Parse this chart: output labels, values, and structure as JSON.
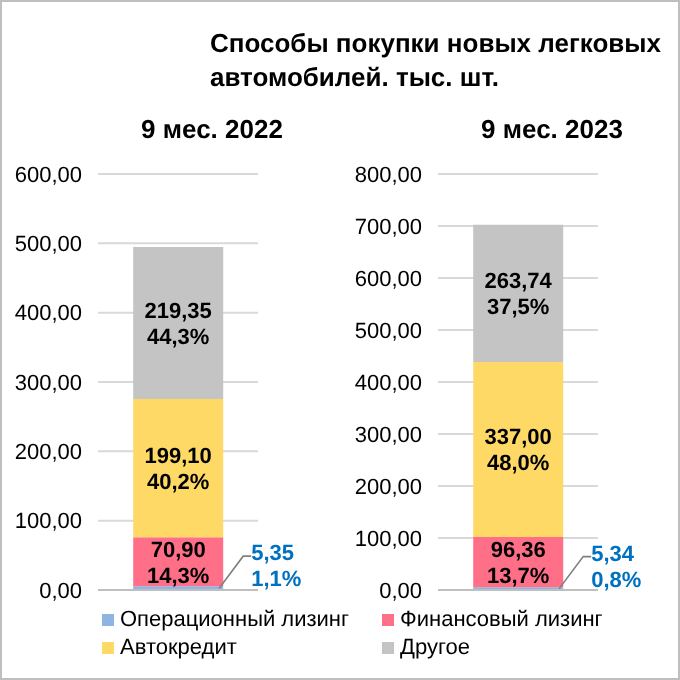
{
  "chart_data": [
    {
      "type": "bar",
      "title": "Способы покупки новых легковых  автомобилей. тыс. шт.",
      "subtitle": "9 мес. 2022",
      "categories": [
        null
      ],
      "stacked": true,
      "grid": "y",
      "legend": "bottom",
      "data_labels": false,
      "ylim": [
        0,
        600
      ],
      "yticks": [
        {
          "value": 0,
          "label": "0,00"
        },
        {
          "value": 100,
          "label": "100,00"
        },
        {
          "value": 200,
          "label": "200,00"
        },
        {
          "value": 300,
          "label": "300,00"
        },
        {
          "value": 400,
          "label": "400,00"
        },
        {
          "value": 500,
          "label": "500,00"
        },
        {
          "value": 600,
          "label": "600,00"
        }
      ],
      "series": [
        {
          "name": "Операционный лизинг",
          "color": "#8eb4e3",
          "values": [
            5.35
          ],
          "value_labels": [
            "5,35\n1,1%"
          ]
        },
        {
          "name": "Финансовый лизинг",
          "color": "#ff7088",
          "values": [
            70.9
          ],
          "value_labels": [
            "70,90\n14,3%"
          ]
        },
        {
          "name": "Автокредит",
          "color": "#ffd966",
          "values": [
            199.1
          ],
          "value_labels": [
            "199,10\n40,2%"
          ]
        },
        {
          "name": "Другое",
          "color": "#c4c4c4",
          "values": [
            219.35
          ],
          "value_labels": [
            "219,35\n44,3%"
          ]
        }
      ]
    },
    {
      "type": "bar",
      "subtitle": "9 мес. 2023",
      "categories": [
        null
      ],
      "stacked": true,
      "grid": "y",
      "ylim": [
        0,
        800
      ],
      "yticks": [
        {
          "value": 0,
          "label": "0,00"
        },
        {
          "value": 100,
          "label": "100,00"
        },
        {
          "value": 200,
          "label": "200,00"
        },
        {
          "value": 300,
          "label": "300,00"
        },
        {
          "value": 400,
          "label": "400,00"
        },
        {
          "value": 500,
          "label": "500,00"
        },
        {
          "value": 600,
          "label": "600,00"
        },
        {
          "value": 700,
          "label": "700,00"
        },
        {
          "value": 800,
          "label": "800,00"
        }
      ],
      "series": [
        {
          "name": "Операционный лизинг",
          "color": "#8eb4e3",
          "values": [
            5.34
          ],
          "value_labels": [
            "5,34\n0,8%"
          ]
        },
        {
          "name": "Финансовый лизинг",
          "color": "#ff7088",
          "values": [
            96.36
          ],
          "value_labels": [
            "96,36\n13,7%"
          ]
        },
        {
          "name": "Автокредит",
          "color": "#ffd966",
          "values": [
            337.0
          ],
          "value_labels": [
            "337,00\n48,0%"
          ]
        },
        {
          "name": "Другое",
          "color": "#c4c4c4",
          "values": [
            263.74
          ],
          "value_labels": [
            "263,74\n37,5%"
          ]
        }
      ]
    }
  ]
}
